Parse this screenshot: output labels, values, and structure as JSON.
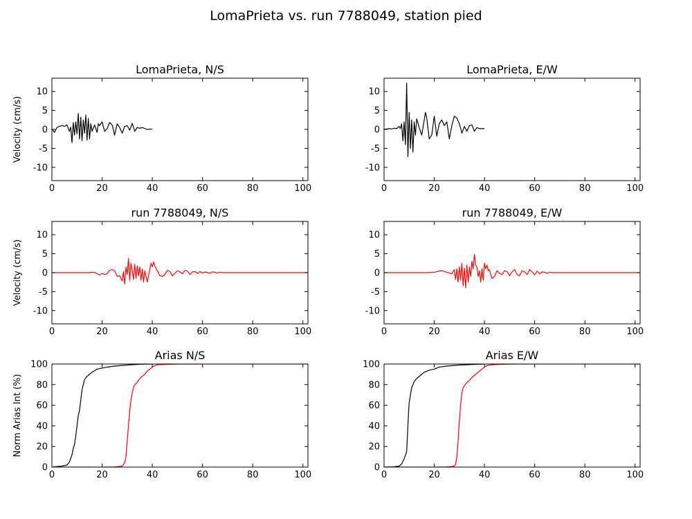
{
  "figure": {
    "title": "LomaPrieta vs. run 7788049, station pied"
  },
  "colors": {
    "observed": "#000000",
    "simulated": "#ff0000",
    "axes": "#000000",
    "background": "#ffffff"
  },
  "chart_data": [
    {
      "type": "line",
      "title": "LomaPrieta, N/S",
      "xlabel": "",
      "ylabel": "Velocity (cm/s)",
      "xlim": [
        0,
        102
      ],
      "ylim": [
        -13.5,
        13.5
      ],
      "xticks": [
        0,
        20,
        40,
        60,
        80,
        100
      ],
      "yticks": [
        -10,
        -5,
        0,
        5,
        10
      ],
      "grid": false,
      "series": [
        {
          "color": "#000000",
          "x": [
            0,
            1,
            2,
            3,
            4,
            5,
            6,
            7,
            7.5,
            8,
            8.5,
            9,
            9.5,
            10,
            10.5,
            11,
            11.5,
            12,
            12.5,
            13,
            13.5,
            14,
            14.5,
            15,
            15.5,
            16,
            17,
            18,
            18.5,
            19,
            20,
            21,
            22,
            23,
            24,
            25,
            26,
            27,
            28,
            29,
            30,
            31,
            32,
            33,
            34,
            35,
            36,
            38,
            40
          ],
          "y": [
            0.2,
            -0.8,
            0.5,
            0.8,
            1.0,
            0.8,
            1.2,
            -0.5,
            0.6,
            -3.5,
            1.8,
            -1.5,
            2.0,
            -1.2,
            4.2,
            -2.5,
            3.2,
            -3.0,
            2.5,
            -1.0,
            3.8,
            -2.8,
            2.9,
            -2.5,
            1.5,
            -0.5,
            1.2,
            -0.8,
            1.5,
            1.0,
            2.0,
            -0.5,
            0.2,
            1.8,
            1.2,
            -1.5,
            1.5,
            0.5,
            -1.0,
            0.8,
            1.0,
            -0.2,
            1.6,
            -0.5,
            0.5,
            0.3,
            0.5,
            0.0,
            0.1
          ]
        }
      ]
    },
    {
      "type": "line",
      "title": "LomaPrieta, E/W",
      "xlabel": "",
      "ylabel": "",
      "xlim": [
        0,
        102
      ],
      "ylim": [
        -13.5,
        13.5
      ],
      "xticks": [
        0,
        20,
        40,
        60,
        80,
        100
      ],
      "yticks": [
        -10,
        -5,
        0,
        5,
        10
      ],
      "grid": false,
      "series": [
        {
          "color": "#000000",
          "x": [
            0,
            2,
            3,
            4,
            5,
            6,
            6.5,
            7,
            7.5,
            8,
            8.5,
            9,
            9.5,
            10,
            10.5,
            11,
            11.5,
            12,
            12.5,
            13,
            14,
            15,
            16,
            16.5,
            17,
            18,
            19,
            20,
            21,
            22,
            23,
            24,
            25,
            26,
            27,
            28,
            29,
            30,
            31,
            32,
            33,
            34,
            35,
            36,
            37,
            38,
            40
          ],
          "y": [
            0.0,
            0.2,
            0.1,
            0.3,
            0.2,
            0.8,
            0.2,
            1.5,
            -3.0,
            2.0,
            -4.0,
            12.2,
            -7.2,
            4.5,
            -5.0,
            2.5,
            -6.0,
            2.0,
            -1.5,
            2.8,
            0.5,
            -1.5,
            2.5,
            4.5,
            3.0,
            -2.5,
            -1.5,
            3.5,
            -1.8,
            1.5,
            2.5,
            1.0,
            2.0,
            -2.5,
            1.0,
            3.5,
            3.0,
            1.5,
            -1.0,
            0.8,
            -0.5,
            1.0,
            1.2,
            -0.5,
            0.5,
            0.2,
            0.2
          ]
        }
      ]
    },
    {
      "type": "line",
      "title": "run 7788049, N/S",
      "xlabel": "",
      "ylabel": "Velocity (cm/s)",
      "xlim": [
        0,
        102
      ],
      "ylim": [
        -13.5,
        13.5
      ],
      "xticks": [
        0,
        20,
        40,
        60,
        80,
        100
      ],
      "yticks": [
        -10,
        -5,
        0,
        5,
        10
      ],
      "grid": false,
      "series": [
        {
          "color": "#ff0000",
          "x": [
            0,
            10,
            15,
            17,
            18,
            19,
            20,
            21,
            22,
            23,
            24,
            25,
            26,
            27,
            27.5,
            28,
            28.5,
            29,
            29.5,
            30,
            30.5,
            31,
            31.5,
            32,
            32.5,
            33,
            33.5,
            34,
            34.5,
            35,
            35.5,
            36,
            36.5,
            37,
            38,
            38.5,
            39,
            39.5,
            40,
            40.5,
            41,
            42,
            43,
            44,
            45,
            46,
            47,
            48,
            49,
            50,
            51,
            52,
            53,
            54,
            55,
            56,
            57,
            58,
            59,
            60,
            61,
            62,
            63,
            64,
            65,
            66,
            67,
            68,
            70,
            75,
            80,
            90,
            102
          ],
          "y": [
            0,
            0,
            0,
            0.1,
            -0.3,
            -0.6,
            -0.2,
            -0.5,
            -0.3,
            0.6,
            0.8,
            0.5,
            -1.0,
            -0.8,
            -1.5,
            -2.2,
            0.3,
            -3.0,
            1.5,
            -0.5,
            3.8,
            -2.0,
            2.5,
            0.5,
            -1.8,
            2.2,
            -1.5,
            1.8,
            -0.8,
            1.5,
            -2.0,
            1.0,
            -2.5,
            0.5,
            -2.5,
            -0.8,
            0.8,
            2.5,
            1.5,
            2.8,
            1.8,
            0.5,
            -0.8,
            -1.0,
            -0.5,
            0.6,
            0.3,
            -0.8,
            -0.2,
            0.5,
            0.2,
            -0.3,
            0.6,
            0.4,
            -0.5,
            0.2,
            0.3,
            -0.2,
            0.3,
            -0.1,
            0.2,
            0.0,
            -0.2,
            0.2,
            0.1,
            -0.1,
            0.1,
            0.0,
            0.0,
            0.0,
            0.0,
            0.0,
            0.0
          ]
        }
      ]
    },
    {
      "type": "line",
      "title": "run 7788049, E/W",
      "xlabel": "",
      "ylabel": "",
      "xlim": [
        0,
        102
      ],
      "ylim": [
        -13.5,
        13.5
      ],
      "xticks": [
        0,
        20,
        40,
        60,
        80,
        100
      ],
      "yticks": [
        -10,
        -5,
        0,
        5,
        10
      ],
      "grid": false,
      "series": [
        {
          "color": "#ff0000",
          "x": [
            0,
            10,
            18,
            20,
            22,
            23,
            24,
            25,
            26,
            27,
            28,
            28.5,
            29,
            29.5,
            30,
            30.5,
            31,
            31.5,
            32,
            32.5,
            33,
            33.5,
            34,
            34.5,
            35,
            35.5,
            36,
            36.5,
            37,
            37.5,
            38,
            38.5,
            39,
            39.5,
            40,
            40.5,
            41,
            41.5,
            42,
            43,
            44,
            45,
            46,
            47,
            48,
            49,
            50,
            51,
            52,
            53,
            54,
            55,
            56,
            57,
            58,
            59,
            60,
            61,
            62,
            63,
            64,
            65,
            66,
            67,
            68,
            70,
            75,
            80,
            90,
            102
          ],
          "y": [
            0,
            0,
            0,
            0.1,
            0.4,
            0.5,
            0.3,
            0.1,
            -0.1,
            -0.3,
            0.8,
            -1.8,
            1.0,
            -2.5,
            1.5,
            -2.0,
            2.5,
            -3.5,
            1.2,
            -4.0,
            2.0,
            -2.5,
            1.5,
            -1.0,
            3.0,
            1.0,
            4.8,
            2.0,
            1.5,
            -1.0,
            0.5,
            -2.5,
            1.0,
            -2.0,
            2.5,
            1.0,
            2.0,
            0.5,
            0.8,
            -1.5,
            -1.0,
            0.5,
            -0.2,
            -0.5,
            0.5,
            0.3,
            -0.8,
            0.2,
            0.8,
            -0.5,
            -0.8,
            0.5,
            0.2,
            -0.5,
            0.8,
            0.2,
            -0.6,
            0.4,
            -0.3,
            0.2,
            0.1,
            -0.2,
            0.1,
            0.0,
            0.0,
            0.0,
            0.0,
            0.0,
            0.0,
            0.0
          ]
        }
      ]
    },
    {
      "type": "line",
      "title": "Arias N/S",
      "xlabel": "",
      "ylabel": "Norm Arias Int (%)",
      "xlim": [
        0,
        102
      ],
      "ylim": [
        0,
        100
      ],
      "xticks": [
        0,
        20,
        40,
        60,
        80,
        100
      ],
      "yticks": [
        0,
        20,
        40,
        60,
        80,
        100
      ],
      "grid": false,
      "series": [
        {
          "color": "#000000",
          "x": [
            0,
            2,
            4,
            6,
            7,
            8,
            8.5,
            9,
            9.5,
            10,
            10.5,
            11,
            11.5,
            12,
            12.5,
            13,
            14,
            15,
            16,
            18,
            20,
            22,
            25,
            30,
            35,
            40
          ],
          "y": [
            0,
            0.5,
            1,
            2,
            5,
            12,
            18,
            22,
            30,
            40,
            50,
            55,
            65,
            75,
            80,
            85,
            88,
            90,
            92,
            95,
            96,
            97,
            98,
            99,
            99.7,
            100
          ]
        },
        {
          "color": "#ff0000",
          "x": [
            0,
            20,
            25,
            28,
            29,
            29.5,
            30,
            30.5,
            31,
            31.5,
            32,
            32.5,
            33,
            34,
            35,
            36,
            37,
            38,
            39,
            40,
            41,
            42,
            45,
            50,
            60,
            102
          ],
          "y": [
            0,
            0,
            0.2,
            1,
            4,
            10,
            25,
            40,
            55,
            65,
            72,
            77,
            80,
            82,
            86,
            88,
            90,
            93,
            95,
            97,
            98.5,
            99.2,
            99.6,
            99.9,
            100,
            100
          ]
        }
      ]
    },
    {
      "type": "line",
      "title": "Arias E/W",
      "xlabel": "",
      "ylabel": "",
      "xlim": [
        0,
        102
      ],
      "ylim": [
        0,
        100
      ],
      "xticks": [
        0,
        20,
        40,
        60,
        80,
        100
      ],
      "yticks": [
        0,
        20,
        40,
        60,
        80,
        100
      ],
      "grid": false,
      "series": [
        {
          "color": "#000000",
          "x": [
            0,
            4,
            6,
            7,
            8,
            9,
            9.2,
            9.5,
            9.8,
            10,
            10.5,
            11,
            12,
            13,
            14,
            15,
            16,
            18,
            20,
            22,
            25,
            30,
            35,
            40
          ],
          "y": [
            0,
            0.3,
            1,
            3,
            8,
            15,
            25,
            40,
            55,
            62,
            70,
            77,
            83,
            86,
            88,
            90,
            92,
            94,
            95,
            97,
            98,
            99,
            99.5,
            100
          ]
        },
        {
          "color": "#ff0000",
          "x": [
            0,
            20,
            25,
            27,
            28,
            28.5,
            29,
            29.5,
            30,
            30.5,
            31,
            31.5,
            32,
            33,
            34,
            35,
            36,
            37,
            38,
            39,
            40,
            41,
            42,
            45,
            50,
            60,
            102
          ],
          "y": [
            0,
            0,
            0.2,
            0.5,
            1,
            3,
            10,
            25,
            45,
            60,
            72,
            77,
            79,
            82,
            84,
            87,
            89,
            91,
            93,
            95,
            97,
            98.5,
            99,
            99.5,
            99.9,
            100,
            100
          ]
        }
      ]
    }
  ]
}
